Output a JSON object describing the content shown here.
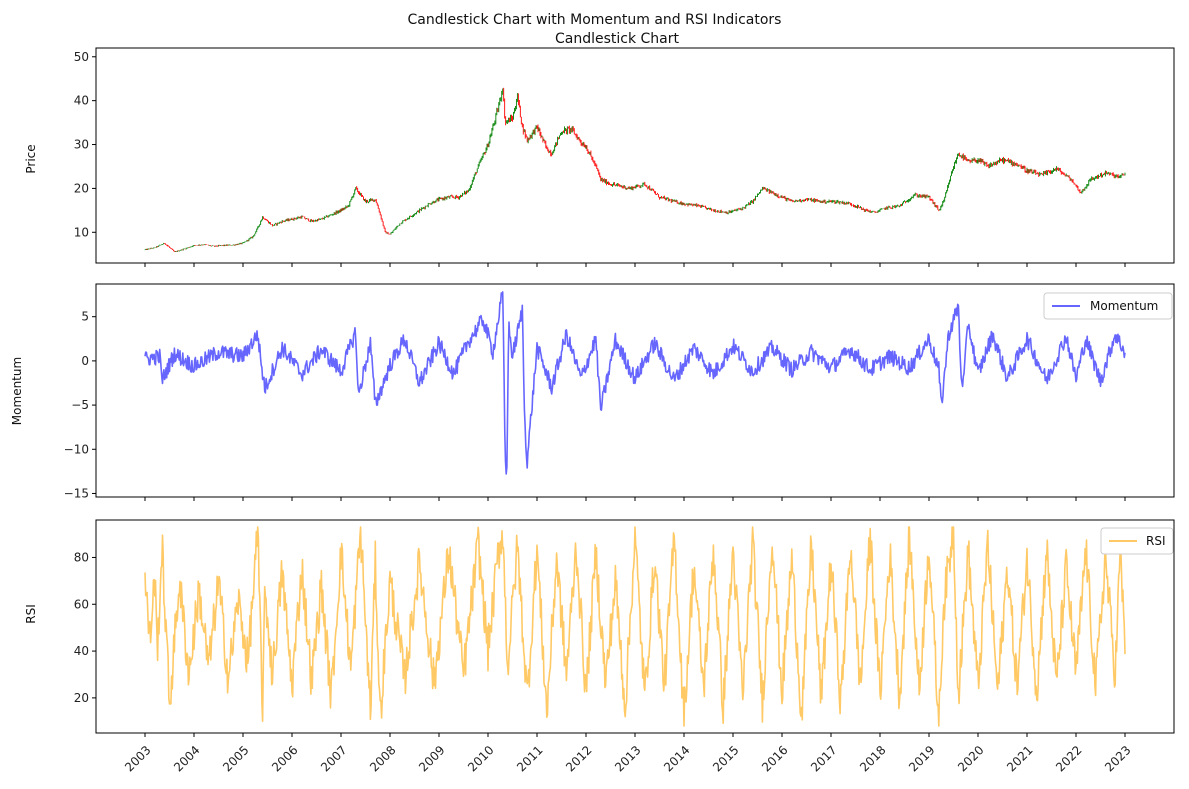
{
  "chart_data": [
    {
      "type": "candlestick",
      "suptitle": "Candlestick Chart with Momentum and RSI Indicators",
      "title": "Candlestick Chart",
      "xlabel": "",
      "ylabel": "Price",
      "ylim": [
        3,
        52
      ],
      "yticks": [
        10,
        20,
        30,
        40,
        50
      ],
      "grid": false,
      "up_color": "#008000",
      "down_color": "#ff0000",
      "x": [
        2003.0,
        2003.2,
        2003.4,
        2003.6,
        2003.8,
        2004.0,
        2004.2,
        2004.4,
        2004.6,
        2004.8,
        2005.0,
        2005.2,
        2005.3,
        2005.4,
        2005.6,
        2005.8,
        2006.0,
        2006.2,
        2006.4,
        2006.6,
        2006.8,
        2007.0,
        2007.15,
        2007.3,
        2007.5,
        2007.7,
        2007.8,
        2007.9,
        2008.0,
        2008.2,
        2008.4,
        2008.6,
        2008.8,
        2009.0,
        2009.2,
        2009.4,
        2009.6,
        2009.8,
        2010.0,
        2010.2,
        2010.3,
        2010.35,
        2010.5,
        2010.6,
        2010.7,
        2010.8,
        2011.0,
        2011.2,
        2011.3,
        2011.5,
        2011.7,
        2011.9,
        2012.0,
        2012.2,
        2012.3,
        2012.5,
        2012.7,
        2012.9,
        2013.2,
        2013.5,
        2013.8,
        2014.0,
        2014.3,
        2014.6,
        2014.9,
        2015.2,
        2015.4,
        2015.6,
        2015.9,
        2016.2,
        2016.5,
        2016.8,
        2017.1,
        2017.4,
        2017.7,
        2017.9,
        2018.1,
        2018.4,
        2018.7,
        2019.0,
        2019.2,
        2019.3,
        2019.5,
        2019.6,
        2019.8,
        2020.0,
        2020.2,
        2020.5,
        2020.8,
        2021.0,
        2021.3,
        2021.6,
        2021.9,
        2022.1,
        2022.3,
        2022.6,
        2022.9,
        2023.0
      ],
      "close": [
        6.0,
        6.5,
        7.5,
        5.5,
        6.2,
        7.0,
        7.2,
        6.8,
        7.0,
        7.1,
        7.5,
        9.0,
        11.0,
        13.5,
        11.5,
        12.5,
        13.0,
        13.5,
        12.5,
        13.0,
        14.0,
        15.0,
        16.0,
        20.0,
        17.0,
        17.5,
        14.0,
        10.0,
        9.5,
        12.0,
        13.5,
        15.0,
        16.5,
        17.5,
        18.0,
        18.0,
        19.5,
        25.0,
        30.0,
        38.0,
        43.0,
        35.0,
        36.0,
        41.0,
        34.0,
        31.0,
        34.0,
        29.0,
        28.0,
        33.0,
        33.5,
        30.5,
        29.5,
        25.0,
        22.0,
        21.0,
        20.5,
        20.0,
        21.0,
        18.0,
        17.0,
        16.5,
        16.0,
        15.0,
        14.5,
        15.5,
        17.0,
        20.0,
        18.5,
        17.0,
        17.5,
        17.0,
        17.0,
        16.5,
        15.0,
        14.5,
        15.5,
        16.0,
        18.5,
        18.0,
        15.0,
        17.0,
        25.0,
        28.0,
        26.0,
        26.5,
        25.0,
        26.5,
        25.5,
        24.0,
        23.0,
        24.5,
        22.0,
        19.0,
        22.0,
        23.5,
        22.5,
        23.5
      ]
    },
    {
      "type": "line",
      "title": "",
      "xlabel": "",
      "ylabel": "Momentum",
      "ylim": [
        -15.4,
        8.7
      ],
      "yticks": [
        -15,
        -10,
        -5,
        0,
        5
      ],
      "grid": false,
      "legend": "upper right",
      "series": [
        {
          "name": "Momentum",
          "color": "#6666ff",
          "x": [
            2003.0,
            2003.3,
            2003.35,
            2003.6,
            2004.0,
            2004.5,
            2005.0,
            2005.3,
            2005.4,
            2005.45,
            2005.8,
            2006.2,
            2006.6,
            2007.0,
            2007.3,
            2007.35,
            2007.6,
            2007.7,
            2008.0,
            2008.3,
            2008.6,
            2009.0,
            2009.3,
            2009.6,
            2009.9,
            2010.1,
            2010.3,
            2010.35,
            2010.38,
            2010.42,
            2010.5,
            2010.7,
            2010.75,
            2010.8,
            2011.0,
            2011.3,
            2011.6,
            2011.9,
            2012.2,
            2012.3,
            2012.6,
            2013.0,
            2013.4,
            2013.8,
            2014.2,
            2014.6,
            2015.0,
            2015.4,
            2015.8,
            2016.2,
            2016.6,
            2017.0,
            2017.4,
            2017.8,
            2018.2,
            2018.6,
            2019.0,
            2019.2,
            2019.25,
            2019.4,
            2019.6,
            2019.65,
            2019.7,
            2019.8,
            2020.0,
            2020.3,
            2020.6,
            2021.0,
            2021.4,
            2021.8,
            2022.0,
            2022.2,
            2022.5,
            2022.8,
            2023.0
          ],
          "values": [
            0.2,
            0.5,
            -2.2,
            0.8,
            -0.6,
            1.0,
            0.5,
            3.0,
            -1.5,
            -3.1,
            1.5,
            -1.5,
            1.3,
            -1.2,
            3.3,
            -4.0,
            2.0,
            -5.0,
            -0.5,
            2.5,
            -2.5,
            2.0,
            -1.5,
            2.2,
            4.7,
            1.0,
            7.8,
            -10.5,
            -14.3,
            4.0,
            0.5,
            5.7,
            -7.0,
            -11.3,
            1.5,
            -3.0,
            3.0,
            -2.0,
            2.5,
            -5.5,
            2.3,
            -2.0,
            2.0,
            -2.2,
            1.5,
            -1.5,
            1.7,
            -1.2,
            1.5,
            -1.0,
            1.0,
            -0.8,
            1.3,
            -1.0,
            0.5,
            -0.8,
            2.5,
            -1.0,
            -5.2,
            3.0,
            6.2,
            -1.5,
            -2.5,
            4.3,
            -1.5,
            3.0,
            -2.0,
            2.5,
            -2.2,
            2.8,
            -2.0,
            2.5,
            -2.3,
            3.0,
            1.0
          ]
        }
      ]
    },
    {
      "type": "line",
      "title": "",
      "xlabel": "",
      "ylabel": "RSI",
      "ylim": [
        5,
        96
      ],
      "yticks": [
        20,
        40,
        60,
        80
      ],
      "grid": false,
      "legend": "upper right",
      "x_tick_labels": [
        "2003",
        "2004",
        "2005",
        "2006",
        "2007",
        "2008",
        "2009",
        "2010",
        "2011",
        "2012",
        "2013",
        "2014",
        "2015",
        "2016",
        "2017",
        "2018",
        "2019",
        "2020",
        "2021",
        "2022",
        "2023"
      ],
      "series": [
        {
          "name": "RSI",
          "color": "#ffc966",
          "x": [
            2003.0,
            2003.1,
            2003.2,
            2003.25,
            2003.35,
            2003.5,
            2003.7,
            2003.9,
            2004.1,
            2004.3,
            2004.5,
            2004.7,
            2004.9,
            2005.1,
            2005.3,
            2005.4,
            2005.45,
            2005.6,
            2005.8,
            2006.0,
            2006.2,
            2006.4,
            2006.6,
            2006.8,
            2007.0,
            2007.2,
            2007.4,
            2007.6,
            2007.7,
            2007.8,
            2008.0,
            2008.3,
            2008.6,
            2008.9,
            2009.2,
            2009.5,
            2009.8,
            2010.0,
            2010.2,
            2010.3,
            2010.4,
            2010.6,
            2010.8,
            2011.0,
            2011.2,
            2011.4,
            2011.6,
            2011.8,
            2012.0,
            2012.2,
            2012.4,
            2012.6,
            2012.8,
            2013.0,
            2013.2,
            2013.4,
            2013.6,
            2013.8,
            2014.0,
            2014.2,
            2014.4,
            2014.6,
            2014.8,
            2015.0,
            2015.2,
            2015.4,
            2015.6,
            2015.8,
            2016.0,
            2016.2,
            2016.4,
            2016.6,
            2016.8,
            2017.0,
            2017.2,
            2017.4,
            2017.6,
            2017.8,
            2018.0,
            2018.2,
            2018.4,
            2018.6,
            2018.8,
            2019.0,
            2019.2,
            2019.3,
            2019.5,
            2019.6,
            2019.8,
            2020.0,
            2020.2,
            2020.4,
            2020.6,
            2020.8,
            2021.0,
            2021.2,
            2021.4,
            2021.6,
            2021.8,
            2022.0,
            2022.2,
            2022.4,
            2022.6,
            2022.8,
            2022.9,
            2023.0
          ],
          "values": [
            70,
            45,
            72,
            40,
            84,
            17,
            70,
            30,
            66,
            33,
            70,
            28,
            62,
            35,
            91,
            15,
            66,
            30,
            74,
            25,
            76,
            27,
            68,
            20,
            83,
            32,
            92,
            14,
            78,
            12,
            70,
            28,
            78,
            26,
            83,
            30,
            86,
            40,
            80,
            92,
            33,
            85,
            20,
            84,
            13,
            80,
            30,
            85,
            22,
            82,
            26,
            70,
            16,
            89,
            20,
            80,
            25,
            89,
            12,
            77,
            24,
            84,
            16,
            83,
            21,
            87,
            18,
            90,
            22,
            80,
            12,
            86,
            20,
            78,
            18,
            85,
            25,
            89,
            22,
            82,
            20,
            90,
            23,
            86,
            8,
            60,
            93,
            21,
            83,
            24,
            86,
            22,
            76,
            25,
            80,
            22,
            84,
            25,
            76,
            30,
            84,
            25,
            80,
            30,
            82,
            45
          ]
        }
      ]
    }
  ]
}
